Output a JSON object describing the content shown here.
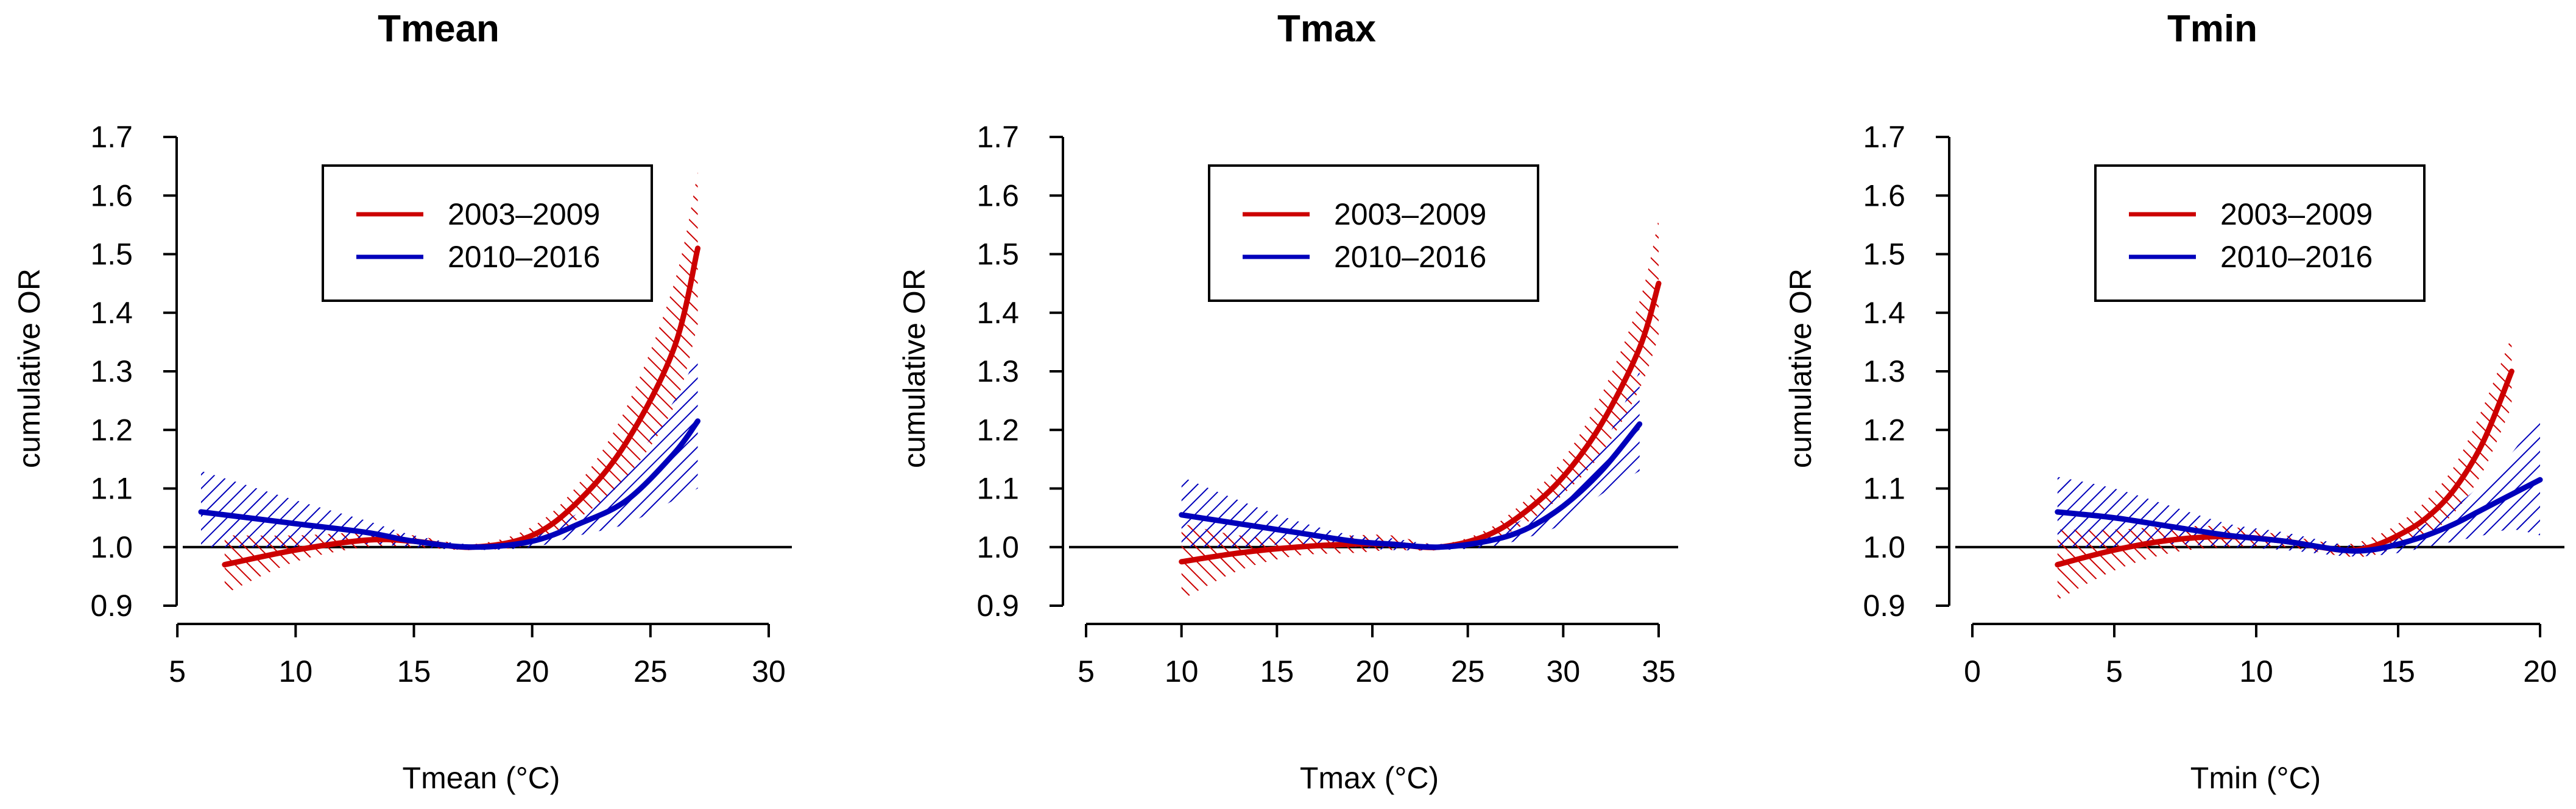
{
  "chart_data": [
    {
      "type": "line",
      "title": "Tmean",
      "xlabel": "Tmean (°C)",
      "ylabel": "cumulative OR",
      "xlim": [
        5,
        31
      ],
      "ylim": [
        0.9,
        1.7
      ],
      "xticks": [
        5,
        10,
        15,
        20,
        25,
        30
      ],
      "xtick_labels": [
        "5",
        "10",
        "15",
        "20",
        "25",
        "30"
      ],
      "yticks": [
        0.9,
        1.0,
        1.1,
        1.2,
        1.3,
        1.4,
        1.5,
        1.6,
        1.7
      ],
      "ytick_labels": [
        "0.9",
        "1.0",
        "1.1",
        "1.2",
        "1.3",
        "1.4",
        "1.5",
        "1.6",
        "1.7"
      ],
      "reference_line": 1.0,
      "legend_position": "top-center",
      "series": [
        {
          "name": "2003–2009",
          "color": "#cc0000",
          "x": [
            7,
            10,
            13,
            15,
            17.5,
            20,
            22,
            24,
            26,
            27
          ],
          "y": [
            0.97,
            0.995,
            1.012,
            1.01,
            1.0,
            1.02,
            1.08,
            1.18,
            1.34,
            1.51
          ],
          "lower": [
            0.92,
            0.975,
            1.0,
            1.0,
            0.995,
            1.005,
            1.05,
            1.12,
            1.24,
            1.38
          ],
          "upper": [
            1.02,
            1.02,
            1.025,
            1.02,
            1.005,
            1.035,
            1.11,
            1.24,
            1.45,
            1.64
          ]
        },
        {
          "name": "2010–2016",
          "color": "#0000bb",
          "x": [
            6,
            10,
            13,
            15,
            17.5,
            20,
            22,
            24,
            26,
            27
          ],
          "y": [
            1.06,
            1.04,
            1.025,
            1.01,
            1.0,
            1.01,
            1.04,
            1.08,
            1.16,
            1.215
          ],
          "lower": [
            1.0,
            1.0,
            1.005,
            1.0,
            0.995,
            1.0,
            1.02,
            1.04,
            1.08,
            1.1
          ],
          "upper": [
            1.13,
            1.08,
            1.045,
            1.02,
            1.005,
            1.02,
            1.06,
            1.13,
            1.25,
            1.33
          ]
        }
      ]
    },
    {
      "type": "line",
      "title": "Tmax",
      "xlabel": "Tmax (°C)",
      "ylabel": "cumulative OR",
      "xlim": [
        5,
        36
      ],
      "ylim": [
        0.9,
        1.7
      ],
      "xticks": [
        5,
        10,
        15,
        20,
        25,
        30,
        35
      ],
      "xtick_labels": [
        "5",
        "10",
        "15",
        "20",
        "25",
        "30",
        "35"
      ],
      "yticks": [
        0.9,
        1.0,
        1.1,
        1.2,
        1.3,
        1.4,
        1.5,
        1.6,
        1.7
      ],
      "ytick_labels": [
        "0.9",
        "1.0",
        "1.1",
        "1.2",
        "1.3",
        "1.4",
        "1.5",
        "1.6",
        "1.7"
      ],
      "reference_line": 1.0,
      "legend_position": "top-center",
      "series": [
        {
          "name": "2003–2009",
          "color": "#cc0000",
          "x": [
            10,
            13,
            16,
            19,
            21,
            23.5,
            26,
            28,
            30,
            32,
            34,
            35
          ],
          "y": [
            0.975,
            0.99,
            1.0,
            1.005,
            1.005,
            1.0,
            1.02,
            1.06,
            1.12,
            1.21,
            1.34,
            1.45
          ],
          "lower": [
            0.91,
            0.96,
            0.985,
            0.99,
            0.995,
            0.995,
            1.01,
            1.04,
            1.09,
            1.16,
            1.27,
            1.36
          ],
          "upper": [
            1.04,
            1.02,
            1.015,
            1.02,
            1.02,
            1.005,
            1.03,
            1.08,
            1.15,
            1.26,
            1.42,
            1.56
          ]
        },
        {
          "name": "2010–2016",
          "color": "#0000bb",
          "x": [
            10,
            13,
            16,
            19,
            21,
            23.5,
            26,
            28,
            30,
            32,
            34
          ],
          "y": [
            1.055,
            1.04,
            1.025,
            1.01,
            1.005,
            1.0,
            1.01,
            1.03,
            1.07,
            1.13,
            1.21
          ],
          "lower": [
            1.0,
            1.0,
            1.005,
            1.0,
            0.995,
            0.995,
            1.0,
            1.015,
            1.04,
            1.09,
            1.13
          ],
          "upper": [
            1.12,
            1.08,
            1.045,
            1.02,
            1.015,
            1.005,
            1.02,
            1.05,
            1.1,
            1.17,
            1.3
          ]
        }
      ]
    },
    {
      "type": "line",
      "title": "Tmin",
      "xlabel": "Tmin (°C)",
      "ylabel": "cumulative OR",
      "xlim": [
        0,
        20.5
      ],
      "ylim": [
        0.9,
        1.7
      ],
      "xticks": [
        0,
        5,
        10,
        15,
        20
      ],
      "xtick_labels": [
        "0",
        "5",
        "10",
        "15",
        "20"
      ],
      "yticks": [
        0.9,
        1.0,
        1.1,
        1.2,
        1.3,
        1.4,
        1.5,
        1.6,
        1.7
      ],
      "ytick_labels": [
        "0.9",
        "1.0",
        "1.1",
        "1.2",
        "1.3",
        "1.4",
        "1.5",
        "1.6",
        "1.7"
      ],
      "reference_line": 1.0,
      "legend_position": "top-center",
      "series": [
        {
          "name": "2003–2009",
          "color": "#cc0000",
          "x": [
            3,
            5,
            7,
            9,
            11,
            13,
            14,
            15,
            16,
            17,
            18,
            19
          ],
          "y": [
            0.97,
            0.995,
            1.012,
            1.018,
            1.01,
            0.995,
            1.0,
            1.02,
            1.05,
            1.1,
            1.18,
            1.3
          ],
          "lower": [
            0.91,
            0.96,
            0.99,
            1.0,
            1.0,
            0.985,
            0.985,
            1.0,
            1.02,
            1.06,
            1.13,
            1.24
          ],
          "upper": [
            1.03,
            1.03,
            1.035,
            1.035,
            1.02,
            1.005,
            1.015,
            1.04,
            1.08,
            1.14,
            1.24,
            1.36
          ]
        },
        {
          "name": "2010–2016",
          "color": "#0000bb",
          "x": [
            3,
            5,
            7,
            9,
            11,
            13,
            14,
            15,
            16,
            17,
            18,
            19,
            20
          ],
          "y": [
            1.06,
            1.05,
            1.035,
            1.02,
            1.01,
            0.995,
            0.995,
            1.005,
            1.02,
            1.04,
            1.065,
            1.09,
            1.115
          ],
          "lower": [
            1.0,
            1.0,
            1.005,
            1.0,
            0.995,
            0.985,
            0.985,
            0.99,
            1.0,
            1.01,
            1.02,
            1.03,
            1.02
          ],
          "upper": [
            1.12,
            1.1,
            1.07,
            1.04,
            1.025,
            1.005,
            1.005,
            1.02,
            1.04,
            1.07,
            1.11,
            1.16,
            1.23
          ]
        }
      ]
    }
  ]
}
